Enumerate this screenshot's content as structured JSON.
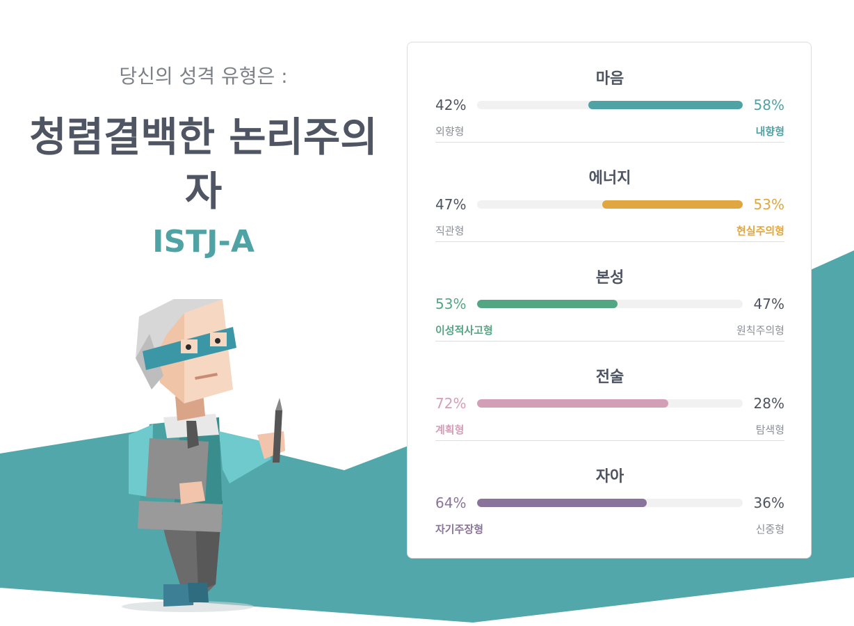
{
  "header": {
    "intro": "당신의 성격 유형은 :",
    "type_name": "청렴결백한 논리주의자",
    "type_code": "ISTJ-A"
  },
  "colors": {
    "teal": "#4fa3a5",
    "gold": "#e0a63f",
    "green": "#52a683",
    "pink": "#d29fb7",
    "purple": "#8a739a",
    "text": "#4d5360"
  },
  "traits": [
    {
      "title": "마음",
      "left_pct": "42%",
      "right_pct": "58%",
      "left_label": "외향형",
      "right_label": "내향형",
      "value": 58,
      "side": "right",
      "color": "#4fa3a5"
    },
    {
      "title": "에너지",
      "left_pct": "47%",
      "right_pct": "53%",
      "left_label": "직관형",
      "right_label": "현실주의형",
      "value": 53,
      "side": "right",
      "color": "#e0a63f"
    },
    {
      "title": "본성",
      "left_pct": "53%",
      "right_pct": "47%",
      "left_label": "이성적사고형",
      "right_label": "원칙주의형",
      "value": 53,
      "side": "left",
      "color": "#52a683"
    },
    {
      "title": "전술",
      "left_pct": "72%",
      "right_pct": "28%",
      "left_label": "계획형",
      "right_label": "탐색형",
      "value": 72,
      "side": "left",
      "color": "#d29fb7"
    },
    {
      "title": "자아",
      "left_pct": "64%",
      "right_pct": "36%",
      "left_label": "자기주장형",
      "right_label": "신중형",
      "value": 64,
      "side": "left",
      "color": "#8a739a"
    }
  ]
}
